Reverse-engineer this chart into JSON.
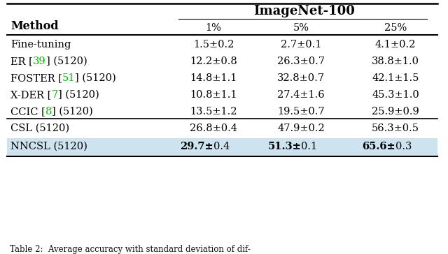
{
  "title": "ImageNet-100",
  "rows": [
    {
      "method_parts": [
        {
          "text": "Fine-tuning",
          "color": "#000000"
        }
      ],
      "v1": "1.5±0.2",
      "v2": "2.7±0.1",
      "v3": "4.1±0.2",
      "bold_values": false,
      "highlight": false,
      "group": 1
    },
    {
      "method_parts": [
        {
          "text": "ER [",
          "color": "#000000"
        },
        {
          "text": "39",
          "color": "#00bb00"
        },
        {
          "text": "] (5120)",
          "color": "#000000"
        }
      ],
      "v1": "12.2±0.8",
      "v2": "26.3±0.7",
      "v3": "38.8±1.0",
      "bold_values": false,
      "highlight": false,
      "group": 1
    },
    {
      "method_parts": [
        {
          "text": "FOSTER [",
          "color": "#000000"
        },
        {
          "text": "51",
          "color": "#00bb00"
        },
        {
          "text": "] (5120)",
          "color": "#000000"
        }
      ],
      "v1": "14.8±1.1",
      "v2": "32.8±0.7",
      "v3": "42.1±1.5",
      "bold_values": false,
      "highlight": false,
      "group": 1
    },
    {
      "method_parts": [
        {
          "text": "X-DER [",
          "color": "#000000"
        },
        {
          "text": "7",
          "color": "#00bb00"
        },
        {
          "text": "] (5120)",
          "color": "#000000"
        }
      ],
      "v1": "10.8±1.1",
      "v2": "27.4±1.6",
      "v3": "45.3±1.0",
      "bold_values": false,
      "highlight": false,
      "group": 1
    },
    {
      "method_parts": [
        {
          "text": "CCIC [",
          "color": "#000000"
        },
        {
          "text": "8",
          "color": "#00bb00"
        },
        {
          "text": "] (5120)",
          "color": "#000000"
        }
      ],
      "v1": "13.5±1.2",
      "v2": "19.5±0.7",
      "v3": "25.9±0.9",
      "bold_values": false,
      "highlight": false,
      "group": 1
    },
    {
      "method_parts": [
        {
          "text": "CSL (5120)",
          "color": "#000000"
        }
      ],
      "v1": "26.8±0.4",
      "v2": "47.9±0.2",
      "v3": "56.3±0.5",
      "bold_values": false,
      "highlight": false,
      "group": 2
    },
    {
      "method_parts": [
        {
          "text": "NNCSL (5120)",
          "color": "#000000"
        }
      ],
      "v1": "29.7±0.4",
      "v2": "51.3±0.1",
      "v3": "65.6±0.3",
      "bold_values": true,
      "highlight": true,
      "group": 2
    }
  ],
  "caption": "Table 2:  Average accuracy with standard deviation of dif-",
  "highlight_color": "#cde4f0",
  "background_color": "#ffffff",
  "font_size": 10.5,
  "header_font_size": 11.5
}
